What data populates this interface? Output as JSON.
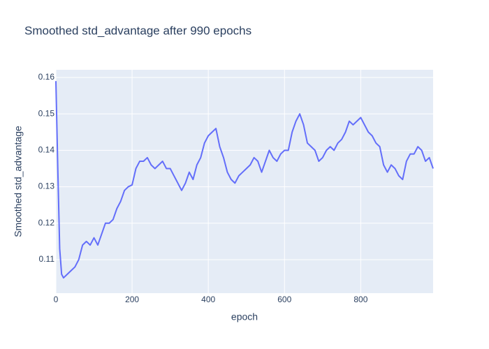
{
  "chart_data": {
    "type": "line",
    "title": "Smoothed std_advantage after 990 epochs",
    "x_label": "epoch",
    "y_label": "Smoothed std_advantage",
    "x": [
      0,
      5,
      10,
      15,
      20,
      30,
      40,
      50,
      60,
      70,
      80,
      90,
      100,
      110,
      120,
      130,
      140,
      150,
      160,
      170,
      180,
      190,
      200,
      210,
      220,
      230,
      240,
      250,
      260,
      270,
      280,
      290,
      300,
      310,
      320,
      330,
      340,
      350,
      360,
      370,
      380,
      390,
      400,
      410,
      420,
      430,
      440,
      450,
      460,
      470,
      480,
      490,
      500,
      510,
      520,
      530,
      540,
      550,
      560,
      570,
      580,
      590,
      600,
      610,
      620,
      630,
      640,
      650,
      660,
      670,
      680,
      690,
      700,
      710,
      720,
      730,
      740,
      750,
      760,
      770,
      780,
      790,
      800,
      810,
      820,
      830,
      840,
      850,
      860,
      870,
      880,
      890,
      900,
      910,
      920,
      930,
      940,
      950,
      960,
      970,
      980,
      990
    ],
    "series": [
      {
        "name": "Smoothed std_advantage",
        "color": "#636efa",
        "values": [
          0.159,
          0.135,
          0.113,
          0.106,
          0.105,
          0.106,
          0.107,
          0.108,
          0.11,
          0.114,
          0.115,
          0.114,
          0.116,
          0.114,
          0.117,
          0.12,
          0.12,
          0.121,
          0.124,
          0.126,
          0.129,
          0.13,
          0.1305,
          0.135,
          0.137,
          0.137,
          0.138,
          0.136,
          0.135,
          0.136,
          0.137,
          0.135,
          0.135,
          0.133,
          0.131,
          0.129,
          0.131,
          0.134,
          0.132,
          0.136,
          0.138,
          0.142,
          0.144,
          0.145,
          0.146,
          0.141,
          0.138,
          0.134,
          0.132,
          0.131,
          0.133,
          0.134,
          0.135,
          0.136,
          0.138,
          0.137,
          0.134,
          0.137,
          0.14,
          0.138,
          0.137,
          0.139,
          0.14,
          0.14,
          0.145,
          0.148,
          0.15,
          0.147,
          0.142,
          0.141,
          0.14,
          0.137,
          0.138,
          0.14,
          0.141,
          0.14,
          0.142,
          0.143,
          0.145,
          0.148,
          0.147,
          0.148,
          0.149,
          0.147,
          0.145,
          0.144,
          0.142,
          0.141,
          0.136,
          0.134,
          0.136,
          0.135,
          0.133,
          0.132,
          0.137,
          0.139,
          0.139,
          0.141,
          0.14,
          0.137,
          0.138,
          0.135
        ]
      }
    ],
    "xlim": [
      0,
      990
    ],
    "ylim": [
      0.1008,
      0.1621
    ],
    "xticks": [
      0,
      200,
      400,
      600,
      800
    ],
    "yticks": [
      0.11,
      0.12,
      0.13,
      0.14,
      0.15,
      0.16
    ],
    "grid": true
  }
}
